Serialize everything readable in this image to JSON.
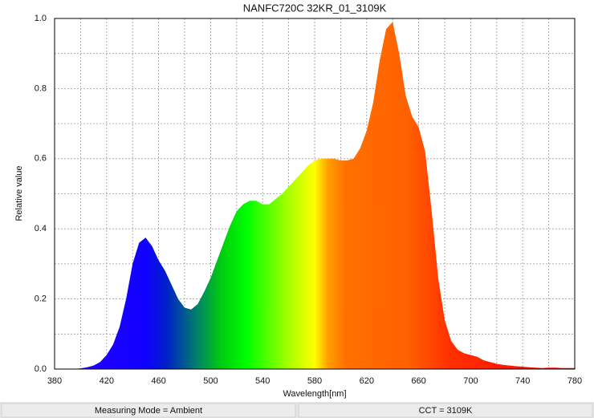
{
  "chart_data": {
    "type": "area",
    "title": "NANFC720C 32KR_01_3109K",
    "x_label": "Wavelength[nm]",
    "y_label": "Relative value",
    "x": [
      380,
      385,
      390,
      395,
      400,
      405,
      410,
      415,
      420,
      425,
      430,
      435,
      440,
      445,
      450,
      455,
      460,
      465,
      470,
      475,
      480,
      485,
      490,
      495,
      500,
      505,
      510,
      515,
      520,
      525,
      530,
      535,
      540,
      545,
      550,
      555,
      560,
      565,
      570,
      575,
      580,
      585,
      590,
      595,
      600,
      605,
      610,
      615,
      620,
      625,
      630,
      635,
      640,
      645,
      650,
      655,
      660,
      665,
      670,
      675,
      680,
      685,
      690,
      695,
      700,
      705,
      710,
      715,
      720,
      725,
      730,
      735,
      740,
      745,
      750,
      755,
      760,
      765,
      770,
      775,
      780
    ],
    "values": [
      0,
      0,
      0,
      0,
      0.002,
      0.005,
      0.01,
      0.02,
      0.04,
      0.07,
      0.12,
      0.2,
      0.3,
      0.36,
      0.375,
      0.35,
      0.31,
      0.28,
      0.24,
      0.2,
      0.175,
      0.17,
      0.185,
      0.22,
      0.26,
      0.31,
      0.36,
      0.41,
      0.45,
      0.47,
      0.48,
      0.48,
      0.47,
      0.47,
      0.485,
      0.5,
      0.52,
      0.54,
      0.56,
      0.58,
      0.595,
      0.6,
      0.6,
      0.6,
      0.595,
      0.595,
      0.6,
      0.63,
      0.68,
      0.76,
      0.88,
      0.97,
      0.99,
      0.9,
      0.78,
      0.72,
      0.69,
      0.62,
      0.45,
      0.26,
      0.14,
      0.08,
      0.055,
      0.045,
      0.04,
      0.035,
      0.025,
      0.02,
      0.015,
      0.012,
      0.01,
      0.008,
      0.007,
      0.005,
      0.004,
      0.003,
      0.004,
      0.004,
      0.003,
      0.003,
      0.003
    ],
    "xlim": [
      380,
      780
    ],
    "xticks": [
      380,
      420,
      460,
      500,
      540,
      580,
      620,
      660,
      700,
      740,
      780
    ],
    "ylim": [
      0,
      1
    ],
    "yticks": [
      {
        "value": 0,
        "label": "0.0"
      },
      0.2,
      0.4,
      0.6,
      0.8,
      {
        "value": 1,
        "label": "1.0"
      }
    ],
    "grid": true
  },
  "footer": [
    "Measuring Mode = Ambient",
    "CCT = 3109K"
  ]
}
